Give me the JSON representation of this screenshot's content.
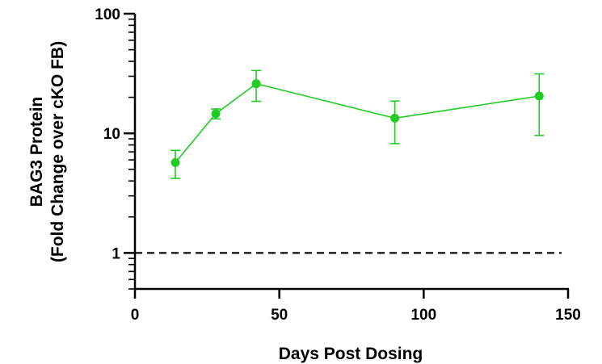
{
  "chart_data": {
    "type": "line",
    "xlabel": "Days Post Dosing",
    "ylabel_lines": [
      "BAG3 Protein",
      "(Fold Change over cKO FB)"
    ],
    "x_ticks": [
      0,
      50,
      100,
      150
    ],
    "x_tick_labels": [
      "0",
      "50",
      "100",
      "150"
    ],
    "y_ticks": [
      1,
      10,
      100
    ],
    "y_tick_labels": [
      "1",
      "10",
      "100"
    ],
    "xlim": [
      0,
      150
    ],
    "ylim": [
      0.5,
      100
    ],
    "y_scale": "log",
    "grid": false,
    "series": [
      {
        "color": "#22cc22",
        "points": [
          {
            "x": 14,
            "y": 5.7,
            "err_low": 4.2,
            "err_high": 7.2
          },
          {
            "x": 28,
            "y": 14.6,
            "err_low": 13.2,
            "err_high": 16.0
          },
          {
            "x": 42,
            "y": 26.0,
            "err_low": 18.5,
            "err_high": 33.5
          },
          {
            "x": 90,
            "y": 13.4,
            "err_low": 8.2,
            "err_high": 18.6
          },
          {
            "x": 140,
            "y": 20.5,
            "err_low": 9.6,
            "err_high": 31.4
          }
        ]
      }
    ],
    "reference_line": {
      "y": 1,
      "style": "dashed",
      "color": "#222222"
    }
  }
}
